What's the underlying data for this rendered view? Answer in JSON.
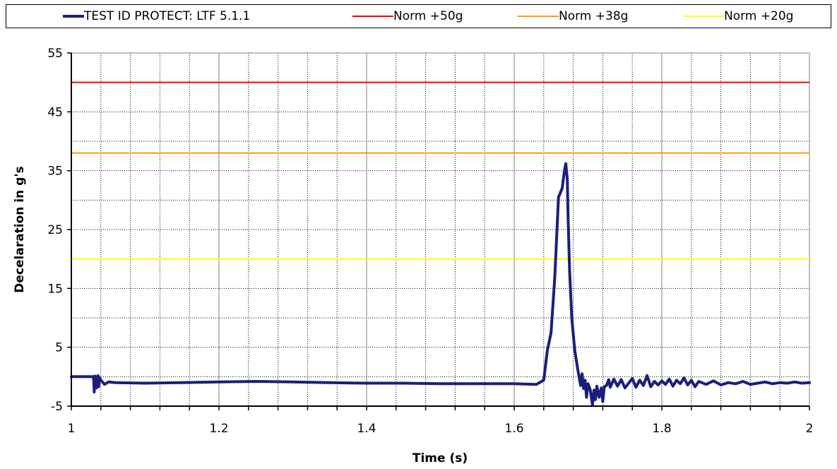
{
  "chart_data": {
    "type": "line",
    "xlabel": "Time (s)",
    "ylabel": "Decelaration in g's",
    "xlim": [
      1,
      2
    ],
    "ylim": [
      -5,
      55
    ],
    "x_ticks": [
      "1",
      "1.2",
      "1.4",
      "1.6",
      "1.8",
      "2"
    ],
    "x_tick_values": [
      1,
      1.2,
      1.4,
      1.6,
      1.8,
      2
    ],
    "y_ticks": [
      "-5",
      "5",
      "15",
      "25",
      "35",
      "45",
      "55"
    ],
    "y_tick_values": [
      -5,
      5,
      15,
      25,
      35,
      45,
      55
    ],
    "minor_x_step": 0.04,
    "minor_y_step": 5,
    "grid": true,
    "legend_position": "top",
    "series": [
      {
        "name": "TEST ID PROTECT: LTF 5.1.1",
        "color": "#1a1f7a",
        "x": [
          1.0,
          1.03,
          1.031,
          1.032,
          1.034,
          1.036,
          1.037,
          1.038,
          1.04,
          1.045,
          1.05,
          1.06,
          1.1,
          1.2,
          1.25,
          1.3,
          1.35,
          1.4,
          1.45,
          1.5,
          1.55,
          1.6,
          1.63,
          1.64,
          1.645,
          1.65,
          1.655,
          1.66,
          1.665,
          1.668,
          1.67,
          1.672,
          1.673,
          1.675,
          1.678,
          1.682,
          1.686,
          1.69,
          1.692,
          1.694,
          1.696,
          1.698,
          1.7,
          1.703,
          1.706,
          1.708,
          1.71,
          1.712,
          1.715,
          1.718,
          1.72,
          1.722,
          1.725,
          1.728,
          1.73,
          1.735,
          1.74,
          1.745,
          1.75,
          1.755,
          1.76,
          1.765,
          1.77,
          1.775,
          1.78,
          1.785,
          1.79,
          1.795,
          1.8,
          1.805,
          1.81,
          1.815,
          1.82,
          1.825,
          1.83,
          1.835,
          1.84,
          1.845,
          1.85,
          1.86,
          1.87,
          1.88,
          1.89,
          1.9,
          1.91,
          1.92,
          1.93,
          1.94,
          1.95,
          1.96,
          1.97,
          1.98,
          1.99,
          2.0
        ],
        "y": [
          0,
          0,
          -2.6,
          0.1,
          -1.9,
          0.2,
          -1.7,
          -0.1,
          -0.6,
          -1.3,
          -0.9,
          -1.0,
          -1.1,
          -0.9,
          -0.8,
          -0.9,
          -1.0,
          -1.1,
          -1.1,
          -1.2,
          -1.2,
          -1.2,
          -1.3,
          -0.6,
          4.5,
          7.5,
          17.0,
          30.5,
          32.0,
          35.0,
          36.2,
          33.5,
          27.0,
          18.0,
          10.0,
          4.5,
          1.3,
          -1.5,
          0.5,
          -2.0,
          -0.6,
          -3.5,
          -1.2,
          -2.2,
          -4.8,
          -2.3,
          -3.9,
          -1.6,
          -3.5,
          -1.9,
          -4.2,
          -1.7,
          -1.5,
          -0.5,
          -1.8,
          -0.4,
          -1.6,
          -0.5,
          -1.9,
          -1.1,
          -0.3,
          -1.8,
          -0.6,
          -1.5,
          0.2,
          -1.7,
          -0.8,
          -1.4,
          -0.7,
          -1.3,
          -0.4,
          -1.6,
          -0.6,
          -1.2,
          -0.2,
          -1.4,
          -0.6,
          -1.7,
          -0.8,
          -1.3,
          -0.7,
          -1.4,
          -1.0,
          -1.2,
          -0.8,
          -1.3,
          -1.1,
          -0.9,
          -1.2,
          -1.0,
          -1.1,
          -0.9,
          -1.1,
          -1.0
        ]
      },
      {
        "name": "Norm +50g",
        "color": "#ff0000",
        "constant": 50
      },
      {
        "name": "Norm +38g",
        "color": "#ff9900",
        "constant": 38
      },
      {
        "name": "Norm +20g",
        "color": "#ffff00",
        "constant": 20
      }
    ]
  }
}
